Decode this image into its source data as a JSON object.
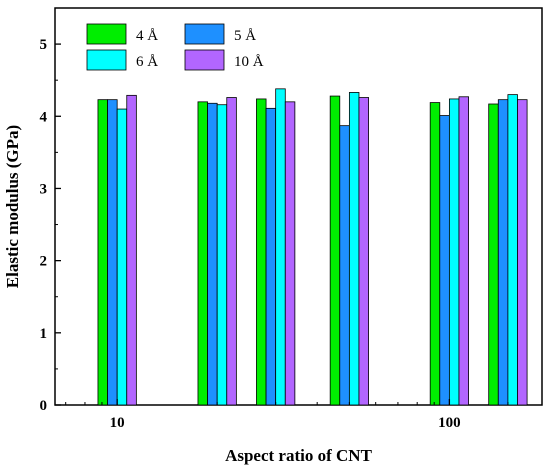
{
  "chart_data": {
    "type": "bar",
    "title": "",
    "xlabel": "Aspect ratio of CNT",
    "ylabel": "Elastic modulus (GPa)",
    "ylim": [
      0,
      5.5
    ],
    "yticks": [
      0,
      1,
      2,
      3,
      4,
      5
    ],
    "x_axis_scale": "log",
    "xticks": [
      {
        "value": 10,
        "label": "10"
      },
      {
        "value": 100,
        "label": "100"
      }
    ],
    "groups": [
      10,
      20,
      30,
      50,
      100,
      150
    ],
    "series": [
      {
        "name": "4 Å",
        "color": "#00ee00",
        "values": [
          4.23,
          4.2,
          4.24,
          4.28,
          4.19,
          4.17
        ]
      },
      {
        "name": "5 Å",
        "color": "#1e90ff",
        "values": [
          4.23,
          4.18,
          4.11,
          3.87,
          4.01,
          4.23
        ]
      },
      {
        "name": "6 Å",
        "color": "#00ffff",
        "values": [
          4.1,
          4.16,
          4.38,
          4.33,
          4.24,
          4.3
        ]
      },
      {
        "name": "10 Å",
        "color": "#b266ff",
        "values": [
          4.29,
          4.26,
          4.2,
          4.26,
          4.27,
          4.23
        ]
      }
    ],
    "legend_position": "top-left",
    "grid": false
  }
}
